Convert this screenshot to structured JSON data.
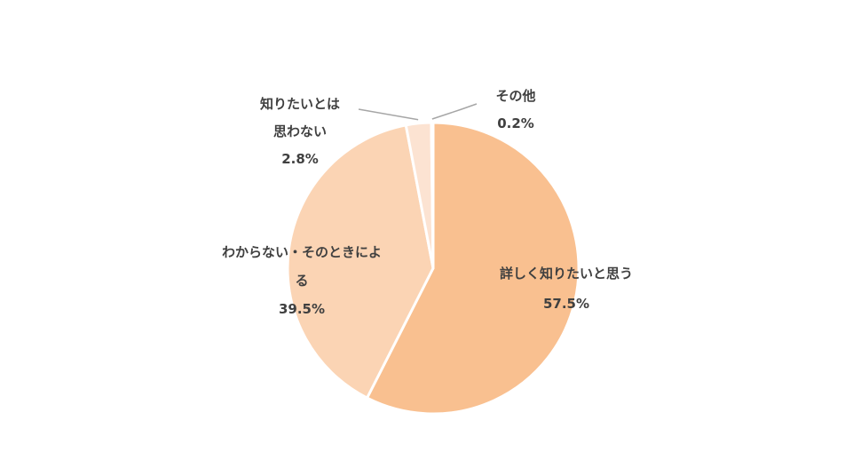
{
  "chart_data": {
    "type": "pie",
    "title": "",
    "slices": [
      {
        "label_lines": [
          "詳しく知りたいと思う"
        ],
        "value": 57.5,
        "value_label": "57.5%",
        "color": "#F9C090"
      },
      {
        "label_lines": [
          "わからない・そのときによ",
          "る"
        ],
        "value": 39.5,
        "value_label": "39.5%",
        "color": "#FBD4B4"
      },
      {
        "label_lines": [
          "知りたいとは",
          "思わない"
        ],
        "value": 2.8,
        "value_label": "2.8%",
        "color": "#FCE3D2"
      },
      {
        "label_lines": [
          "その他"
        ],
        "value": 0.2,
        "value_label": "0.2%",
        "color": "#FDEEE4"
      }
    ],
    "leader_line_color": "#A6A6A6",
    "slice_border_color": "#FFFFFF",
    "label_text_color": "#404040"
  }
}
